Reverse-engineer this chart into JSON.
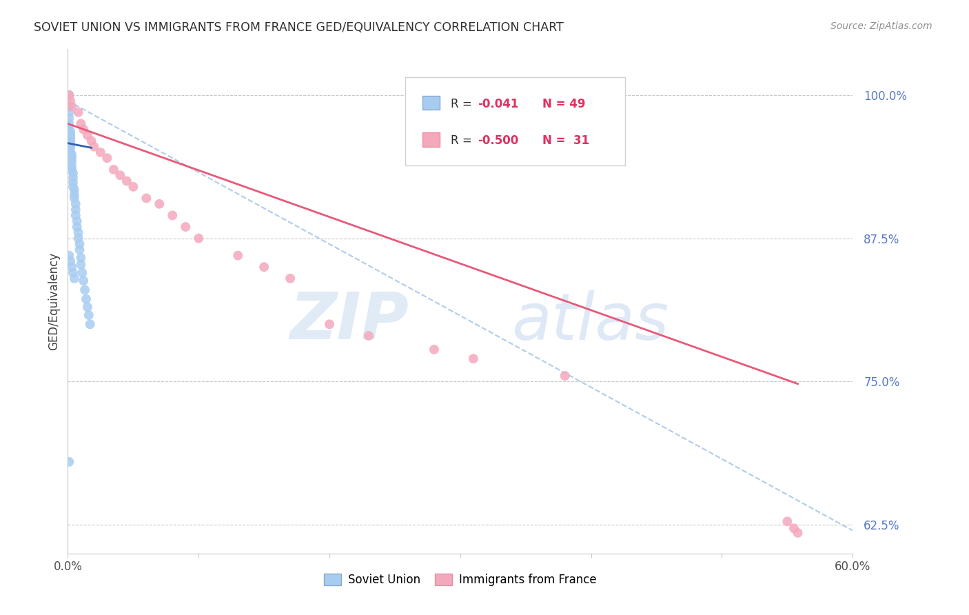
{
  "title": "SOVIET UNION VS IMMIGRANTS FROM FRANCE GED/EQUIVALENCY CORRELATION CHART",
  "source_text": "Source: ZipAtlas.com",
  "ylabel": "GED/Equivalency",
  "xmin": 0.0,
  "xmax": 0.6,
  "ymin": 0.6,
  "ymax": 1.04,
  "yticks": [
    0.625,
    0.75,
    0.875,
    1.0
  ],
  "ytick_labels": [
    "62.5%",
    "75.0%",
    "87.5%",
    "100.0%"
  ],
  "xticks": [
    0.0,
    0.1,
    0.2,
    0.3,
    0.4,
    0.5,
    0.6
  ],
  "xtick_labels": [
    "0.0%",
    "",
    "",
    "",
    "",
    "",
    "60.0%"
  ],
  "legend_r1": "R = -0.041",
  "legend_n1": "N = 49",
  "legend_r2": "R = -0.500",
  "legend_n2": "N = 31",
  "watermark_zip": "ZIP",
  "watermark_atlas": "atlas",
  "soviet_color": "#A8CCF0",
  "france_color": "#F4A8BC",
  "soviet_line_color": "#3060B0",
  "france_line_color": "#E85878",
  "dashed_line_color": "#B0CCE8",
  "soviet_points_x": [
    0.001,
    0.001,
    0.001,
    0.001,
    0.001,
    0.001,
    0.002,
    0.002,
    0.002,
    0.002,
    0.002,
    0.002,
    0.002,
    0.003,
    0.003,
    0.003,
    0.003,
    0.003,
    0.004,
    0.004,
    0.004,
    0.004,
    0.005,
    0.005,
    0.005,
    0.006,
    0.006,
    0.006,
    0.007,
    0.007,
    0.008,
    0.008,
    0.009,
    0.009,
    0.01,
    0.01,
    0.011,
    0.012,
    0.013,
    0.014,
    0.015,
    0.016,
    0.017,
    0.001,
    0.002,
    0.003,
    0.004,
    0.005,
    0.001
  ],
  "soviet_points_y": [
    1.0,
    0.99,
    0.985,
    0.98,
    0.975,
    0.97,
    0.968,
    0.965,
    0.962,
    0.96,
    0.957,
    0.954,
    0.95,
    0.948,
    0.945,
    0.942,
    0.938,
    0.935,
    0.932,
    0.928,
    0.924,
    0.92,
    0.917,
    0.913,
    0.91,
    0.905,
    0.9,
    0.895,
    0.89,
    0.885,
    0.88,
    0.875,
    0.87,
    0.865,
    0.858,
    0.852,
    0.845,
    0.838,
    0.83,
    0.822,
    0.815,
    0.808,
    0.8,
    0.86,
    0.855,
    0.85,
    0.845,
    0.84,
    0.68
  ],
  "france_points_x": [
    0.001,
    0.002,
    0.003,
    0.008,
    0.01,
    0.012,
    0.015,
    0.018,
    0.02,
    0.025,
    0.03,
    0.035,
    0.04,
    0.045,
    0.05,
    0.06,
    0.07,
    0.08,
    0.09,
    0.1,
    0.13,
    0.15,
    0.17,
    0.2,
    0.23,
    0.28,
    0.31,
    0.38,
    0.55,
    0.555,
    0.558
  ],
  "france_points_y": [
    1.0,
    0.995,
    0.99,
    0.985,
    0.975,
    0.97,
    0.965,
    0.96,
    0.955,
    0.95,
    0.945,
    0.935,
    0.93,
    0.925,
    0.92,
    0.91,
    0.905,
    0.895,
    0.885,
    0.875,
    0.86,
    0.85,
    0.84,
    0.8,
    0.79,
    0.778,
    0.77,
    0.755,
    0.628,
    0.622,
    0.618
  ],
  "soviet_trend_x": [
    0.0,
    0.018
  ],
  "soviet_trend_y": [
    0.958,
    0.954
  ],
  "france_trend_x": [
    0.0,
    0.558
  ],
  "france_trend_y": [
    0.975,
    0.748
  ],
  "dashed_trend_x": [
    0.0,
    0.6
  ],
  "dashed_trend_y": [
    0.995,
    0.62
  ]
}
